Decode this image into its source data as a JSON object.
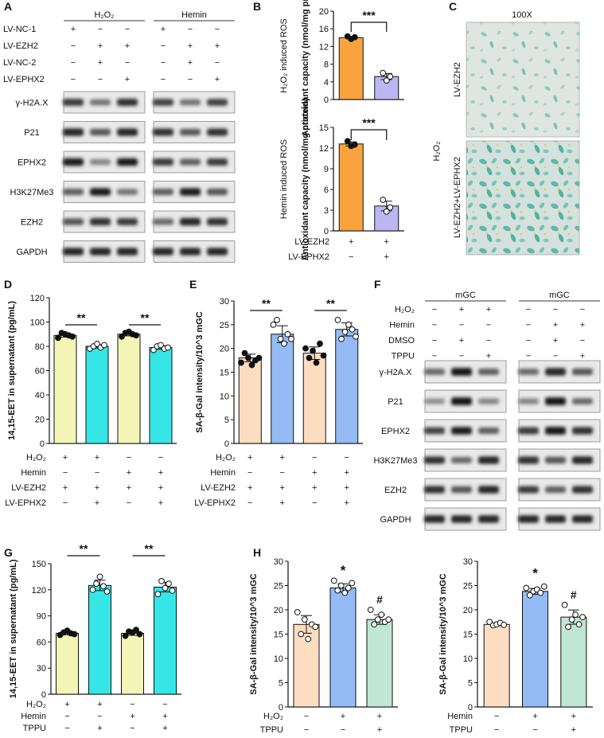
{
  "panels": {
    "A": "A",
    "B": "B",
    "C": "C",
    "D": "D",
    "E": "E",
    "F": "F",
    "G": "G",
    "H": "H"
  },
  "signs": {
    "plus": "+",
    "minus": "−"
  },
  "blotA": {
    "groups": [
      "H₂O₂",
      "Hemin"
    ],
    "conditions": [
      {
        "label": "LV-NC-1",
        "values": [
          "+",
          "−",
          "−",
          "+",
          "−",
          "−"
        ]
      },
      {
        "label": "LV-EZH2",
        "values": [
          "−",
          "+",
          "+",
          "−",
          "+",
          "+"
        ]
      },
      {
        "label": "LV-NC-2",
        "values": [
          "−",
          "+",
          "−",
          "−",
          "+",
          "−"
        ]
      },
      {
        "label": "LV-EPHX2",
        "values": [
          "−",
          "−",
          "+",
          "−",
          "−",
          "+"
        ]
      }
    ],
    "bands": [
      {
        "label": "γ-H2A.X",
        "intensity": [
          0.75,
          0.45,
          0.8,
          0.7,
          0.45,
          0.7
        ]
      },
      {
        "label": "P21",
        "intensity": [
          0.85,
          0.6,
          0.85,
          0.8,
          0.6,
          0.8
        ]
      },
      {
        "label": "EPHX2",
        "intensity": [
          0.9,
          0.35,
          0.9,
          0.75,
          0.55,
          0.75
        ]
      },
      {
        "label": "H3K27Me3",
        "intensity": [
          0.55,
          0.9,
          0.45,
          0.55,
          0.9,
          0.6
        ]
      },
      {
        "label": "EZH2",
        "intensity": [
          0.6,
          0.8,
          0.75,
          0.5,
          0.85,
          0.8
        ]
      },
      {
        "label": "GAPDH",
        "intensity": [
          0.85,
          0.85,
          0.85,
          0.85,
          0.85,
          0.85
        ]
      }
    ]
  },
  "panelB": {
    "top": {
      "title": "H₂O₂ induced ROS",
      "ylabel": "Antioxidant capacity (nmol/mg protein)",
      "ticks": [
        "0",
        "4",
        "8",
        "12",
        "16",
        "20"
      ],
      "ylim": [
        0,
        20
      ],
      "sig": "***"
    },
    "bottom": {
      "title": "Hemin induced ROS",
      "ylabel": "Antioxidant capacity (nmol/mg protein)",
      "ticks": [
        "0",
        "3",
        "6",
        "9",
        "12",
        "15"
      ],
      "ylim": [
        0,
        15
      ],
      "sig": "***"
    },
    "rows": [
      {
        "label": "LV-EZH2",
        "values": [
          "+",
          "+"
        ]
      },
      {
        "label": "LV-EPHX2",
        "values": [
          "−",
          "+"
        ]
      }
    ]
  },
  "panelC": {
    "mag": "100X",
    "side": "H₂O₂",
    "labels": [
      "LV-EZH2",
      "LV-EZH2+LV-EPHX2"
    ]
  },
  "panelD": {
    "ylabel": "14,15-EET in supernatant (pg/mL)",
    "ticks": [
      "0",
      "20",
      "40",
      "60",
      "80",
      "100",
      "120"
    ],
    "sig": [
      "**",
      "**"
    ],
    "rows": [
      {
        "label": "H₂O₂",
        "values": [
          "+",
          "+",
          "−",
          "−"
        ]
      },
      {
        "label": "Hemin",
        "values": [
          "−",
          "−",
          "+",
          "+"
        ]
      },
      {
        "label": "LV-EZH2",
        "values": [
          "+",
          "+",
          "+",
          "+"
        ]
      },
      {
        "label": "LV-EPHX2",
        "values": [
          "−",
          "+",
          "−",
          "+"
        ]
      }
    ]
  },
  "panelE": {
    "ylabel": "SA-β-Gal intensity/10^3 mGC",
    "ticks": [
      "0",
      "5",
      "10",
      "15",
      "20",
      "25",
      "30"
    ],
    "sig": [
      "**",
      "**"
    ],
    "rows": [
      {
        "label": "H₂O₂",
        "values": [
          "+",
          "+",
          "−",
          "−"
        ]
      },
      {
        "label": "Hemin",
        "values": [
          "−",
          "−",
          "+",
          "+"
        ]
      },
      {
        "label": "LV-EZH2",
        "values": [
          "+",
          "+",
          "+",
          "+"
        ]
      },
      {
        "label": "LV-EPHX2",
        "values": [
          "−",
          "+",
          "−",
          "+"
        ]
      }
    ]
  },
  "blotF": {
    "groups": [
      "mGC",
      "mGC"
    ],
    "conditions": [
      {
        "label": "H₂O₂",
        "values": [
          "−",
          "+",
          "+",
          "−",
          "−",
          "−"
        ]
      },
      {
        "label": "Hemin",
        "values": [
          "−",
          "−",
          "−",
          "−",
          "+",
          "+"
        ]
      },
      {
        "label": "DMSO",
        "values": [
          "−",
          "+",
          "−",
          "−",
          "+",
          "−"
        ]
      },
      {
        "label": "TPPU",
        "values": [
          "−",
          "−",
          "+",
          "−",
          "−",
          "+"
        ]
      }
    ],
    "bands": [
      {
        "label": "γ-H2A.X",
        "intensity": [
          0.5,
          0.95,
          0.55,
          0.5,
          0.85,
          0.6
        ]
      },
      {
        "label": "P21",
        "intensity": [
          0.3,
          0.95,
          0.35,
          0.35,
          0.95,
          0.5
        ]
      },
      {
        "label": "EPHX2",
        "intensity": [
          0.7,
          0.9,
          0.55,
          0.75,
          0.95,
          0.8
        ]
      },
      {
        "label": "H3K27Me3",
        "intensity": [
          0.8,
          0.5,
          0.85,
          0.8,
          0.6,
          0.85
        ]
      },
      {
        "label": "EZH2",
        "intensity": [
          0.8,
          0.6,
          0.85,
          0.75,
          0.55,
          0.8
        ]
      },
      {
        "label": "GAPDH",
        "intensity": [
          0.85,
          0.85,
          0.85,
          0.85,
          0.85,
          0.85
        ]
      }
    ]
  },
  "panelG": {
    "ylabel": "14,15-EET in supernatant (pg/mL)",
    "ticks": [
      "0",
      "30",
      "60",
      "90",
      "120",
      "150"
    ],
    "sig": [
      "**",
      "**"
    ],
    "rows": [
      {
        "label": "H₂O₂",
        "values": [
          "+",
          "+",
          "−",
          "−"
        ]
      },
      {
        "label": "Hemin",
        "values": [
          "−",
          "−",
          "+",
          "+"
        ]
      },
      {
        "label": "TPPU",
        "values": [
          "−",
          "+",
          "−",
          "+"
        ]
      }
    ]
  },
  "panelH1": {
    "ylabel": "SA-β-Gal intensity/10^3 mGC",
    "ticks": [
      "0",
      "5",
      "10",
      "15",
      "20",
      "25",
      "30"
    ],
    "marks": [
      "*",
      "#"
    ],
    "rows": [
      {
        "label": "H₂O₂",
        "values": [
          "−",
          "+",
          "+"
        ]
      },
      {
        "label": "TPPU",
        "values": [
          "−",
          "−",
          "+"
        ]
      }
    ]
  },
  "panelH2": {
    "ylabel": "SA-β-Gal intensity/10^3 mGC",
    "ticks": [
      "0",
      "5",
      "10",
      "15",
      "20",
      "25",
      "30"
    ],
    "marks": [
      "*",
      "#"
    ],
    "rows": [
      {
        "label": "Hemin",
        "values": [
          "−",
          "+",
          "+"
        ]
      },
      {
        "label": "TPPU",
        "values": [
          "−",
          "−",
          "+"
        ]
      }
    ]
  },
  "colors": {
    "orange": "#F9A33C",
    "lavender": "#BDB6F3",
    "yellow": "#F2F5B6",
    "cyan": "#36E6E6",
    "peach": "#FDDDC0",
    "blue": "#94BBF4",
    "mint": "#BFE7D3"
  },
  "chart_data": [
    {
      "id": "B-top",
      "type": "bar",
      "categories": [
        "1",
        "2"
      ],
      "values": [
        14.0,
        5.2
      ],
      "points": [
        [
          14.3,
          13.7,
          14.1
        ],
        [
          6.0,
          4.3,
          5.2
        ]
      ],
      "ylim": [
        0,
        20
      ],
      "colors": [
        "#F9A33C",
        "#BDB6F3"
      ]
    },
    {
      "id": "B-bottom",
      "type": "bar",
      "categories": [
        "1",
        "2"
      ],
      "values": [
        12.6,
        3.6
      ],
      "points": [
        [
          13.0,
          12.3,
          12.5
        ],
        [
          4.5,
          2.8,
          3.4
        ]
      ],
      "ylim": [
        0,
        15
      ],
      "colors": [
        "#F9A33C",
        "#BDB6F3"
      ]
    },
    {
      "id": "D",
      "type": "bar",
      "categories": [
        "1",
        "2",
        "3",
        "4"
      ],
      "values": [
        89,
        80,
        90,
        79
      ],
      "points": [
        [
          87,
          91,
          90,
          89,
          88
        ],
        [
          78,
          80,
          82,
          79,
          81
        ],
        [
          88,
          91,
          92,
          90,
          89
        ],
        [
          77,
          80,
          81,
          78,
          79
        ]
      ],
      "ylim": [
        0,
        120
      ],
      "colors": [
        "#F2F5B6",
        "#36E6E6",
        "#F2F5B6",
        "#36E6E6"
      ]
    },
    {
      "id": "E",
      "type": "bar",
      "categories": [
        "1",
        "2",
        "3",
        "4"
      ],
      "values": [
        18,
        23,
        19,
        24
      ],
      "points": [
        [
          17,
          19,
          18,
          16.5,
          17.5,
          18
        ],
        [
          25,
          26,
          22,
          21,
          23,
          22
        ],
        [
          20,
          18,
          19.5,
          17,
          21,
          18.5
        ],
        [
          26,
          22,
          23.5,
          25,
          24,
          22.5
        ]
      ],
      "ylim": [
        0,
        30
      ],
      "colors": [
        "#FDDDC0",
        "#94BBF4",
        "#FDDDC0",
        "#94BBF4"
      ]
    },
    {
      "id": "G",
      "type": "bar",
      "categories": [
        "1",
        "2",
        "3",
        "4"
      ],
      "values": [
        70,
        125,
        70,
        123
      ],
      "points": [
        [
          68,
          71,
          73,
          70,
          69
        ],
        [
          120,
          127,
          135,
          124,
          118
        ],
        [
          67,
          72,
          71,
          74,
          69
        ],
        [
          115,
          130,
          122,
          127,
          119
        ]
      ],
      "ylim": [
        0,
        150
      ],
      "colors": [
        "#F2F5B6",
        "#36E6E6",
        "#F2F5B6",
        "#36E6E6"
      ]
    },
    {
      "id": "H1",
      "type": "bar",
      "categories": [
        "1",
        "2",
        "3"
      ],
      "values": [
        17,
        24.5,
        18
      ],
      "points": [
        [
          19.5,
          15,
          18,
          14,
          17,
          16.5
        ],
        [
          26,
          24,
          25,
          23.5,
          24.5,
          25.5
        ],
        [
          20,
          17,
          18,
          19,
          17.5,
          18
        ]
      ],
      "ylim": [
        0,
        30
      ],
      "colors": [
        "#FDDDC0",
        "#94BBF4",
        "#BFE7D3"
      ]
    },
    {
      "id": "H2",
      "type": "bar",
      "categories": [
        "1",
        "2",
        "3"
      ],
      "values": [
        17,
        23.8,
        18.5
      ],
      "points": [
        [
          17.5,
          16.8,
          17,
          17.3,
          16.9
        ],
        [
          24.5,
          23,
          23.8,
          24.2,
          23.5,
          24.8
        ],
        [
          21,
          16.5,
          18,
          19,
          17,
          18.5
        ]
      ],
      "ylim": [
        0,
        30
      ],
      "colors": [
        "#FDDDC0",
        "#94BBF4",
        "#BFE7D3"
      ]
    }
  ]
}
